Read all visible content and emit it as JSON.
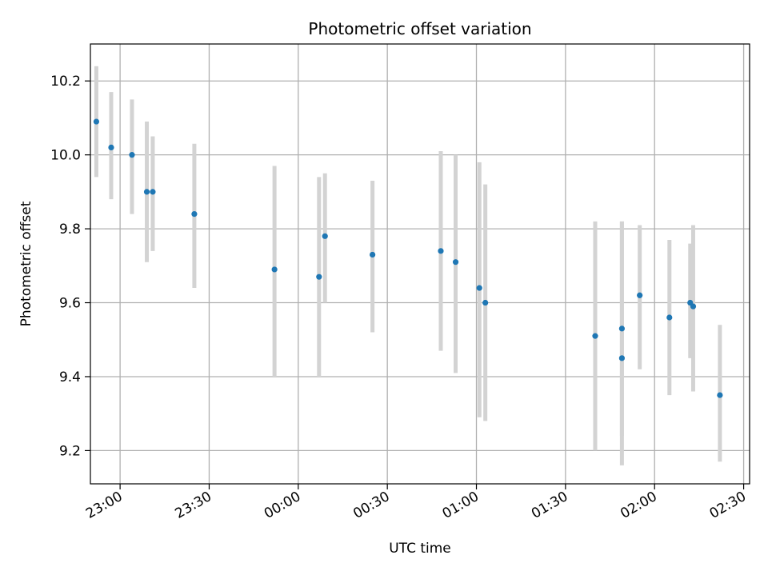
{
  "chart_data": {
    "type": "scatter",
    "title": "Photometric offset variation",
    "xlabel": "UTC time",
    "ylabel": "Photometric offset",
    "grid": true,
    "x_unit": "UTC time (hh:mm)",
    "xlim": [
      "22:50",
      "02:32"
    ],
    "ylim": [
      9.11,
      10.3
    ],
    "xticks": [
      {
        "t": "23:00",
        "label": "23:00"
      },
      {
        "t": "23:30",
        "label": "23:30"
      },
      {
        "t": "00:00",
        "label": "00:00"
      },
      {
        "t": "00:30",
        "label": "00:30"
      },
      {
        "t": "01:00",
        "label": "01:00"
      },
      {
        "t": "01:30",
        "label": "01:30"
      },
      {
        "t": "02:00",
        "label": "02:00"
      },
      {
        "t": "02:30",
        "label": "02:30"
      }
    ],
    "yticks": [
      9.2,
      9.4,
      9.6,
      9.8,
      10.0,
      10.2
    ],
    "ytick_labels": [
      "9.2",
      "9.4",
      "9.6",
      "9.8",
      "10.0",
      "10.2"
    ],
    "colors": {
      "points": "#1f77b4",
      "errorbars": "#d3d3d3",
      "grid": "#b0b0b0"
    },
    "series": [
      {
        "points": [
          {
            "t": "22:52",
            "y": 10.09,
            "lo": 9.94,
            "hi": 10.24
          },
          {
            "t": "22:57",
            "y": 10.02,
            "lo": 9.88,
            "hi": 10.17
          },
          {
            "t": "23:04",
            "y": 10.0,
            "lo": 9.84,
            "hi": 10.15
          },
          {
            "t": "23:09",
            "y": 9.9,
            "lo": 9.71,
            "hi": 10.09
          },
          {
            "t": "23:11",
            "y": 9.9,
            "lo": 9.74,
            "hi": 10.05
          },
          {
            "t": "23:25",
            "y": 9.84,
            "lo": 9.64,
            "hi": 10.03
          },
          {
            "t": "23:52",
            "y": 9.69,
            "lo": 9.4,
            "hi": 9.97
          },
          {
            "t": "00:07",
            "y": 9.67,
            "lo": 9.4,
            "hi": 9.94
          },
          {
            "t": "00:09",
            "y": 9.78,
            "lo": 9.6,
            "hi": 9.95
          },
          {
            "t": "00:25",
            "y": 9.73,
            "lo": 9.52,
            "hi": 9.93
          },
          {
            "t": "00:48",
            "y": 9.74,
            "lo": 9.47,
            "hi": 10.01
          },
          {
            "t": "00:53",
            "y": 9.71,
            "lo": 9.41,
            "hi": 10.0
          },
          {
            "t": "01:01",
            "y": 9.64,
            "lo": 9.29,
            "hi": 9.98
          },
          {
            "t": "01:03",
            "y": 9.6,
            "lo": 9.28,
            "hi": 9.92
          },
          {
            "t": "01:40",
            "y": 9.51,
            "lo": 9.2,
            "hi": 9.82
          },
          {
            "t": "01:49",
            "y": 9.45,
            "lo": 9.16,
            "hi": 9.82
          },
          {
            "t": "01:49",
            "y": 9.53,
            "lo": 9.24,
            "hi": 9.82
          },
          {
            "t": "01:55",
            "y": 9.62,
            "lo": 9.42,
            "hi": 9.81
          },
          {
            "t": "02:05",
            "y": 9.56,
            "lo": 9.35,
            "hi": 9.77
          },
          {
            "t": "02:12",
            "y": 9.6,
            "lo": 9.45,
            "hi": 9.76
          },
          {
            "t": "02:13",
            "y": 9.59,
            "lo": 9.36,
            "hi": 9.81
          },
          {
            "t": "02:22",
            "y": 9.35,
            "lo": 9.17,
            "hi": 9.54
          }
        ]
      }
    ]
  }
}
